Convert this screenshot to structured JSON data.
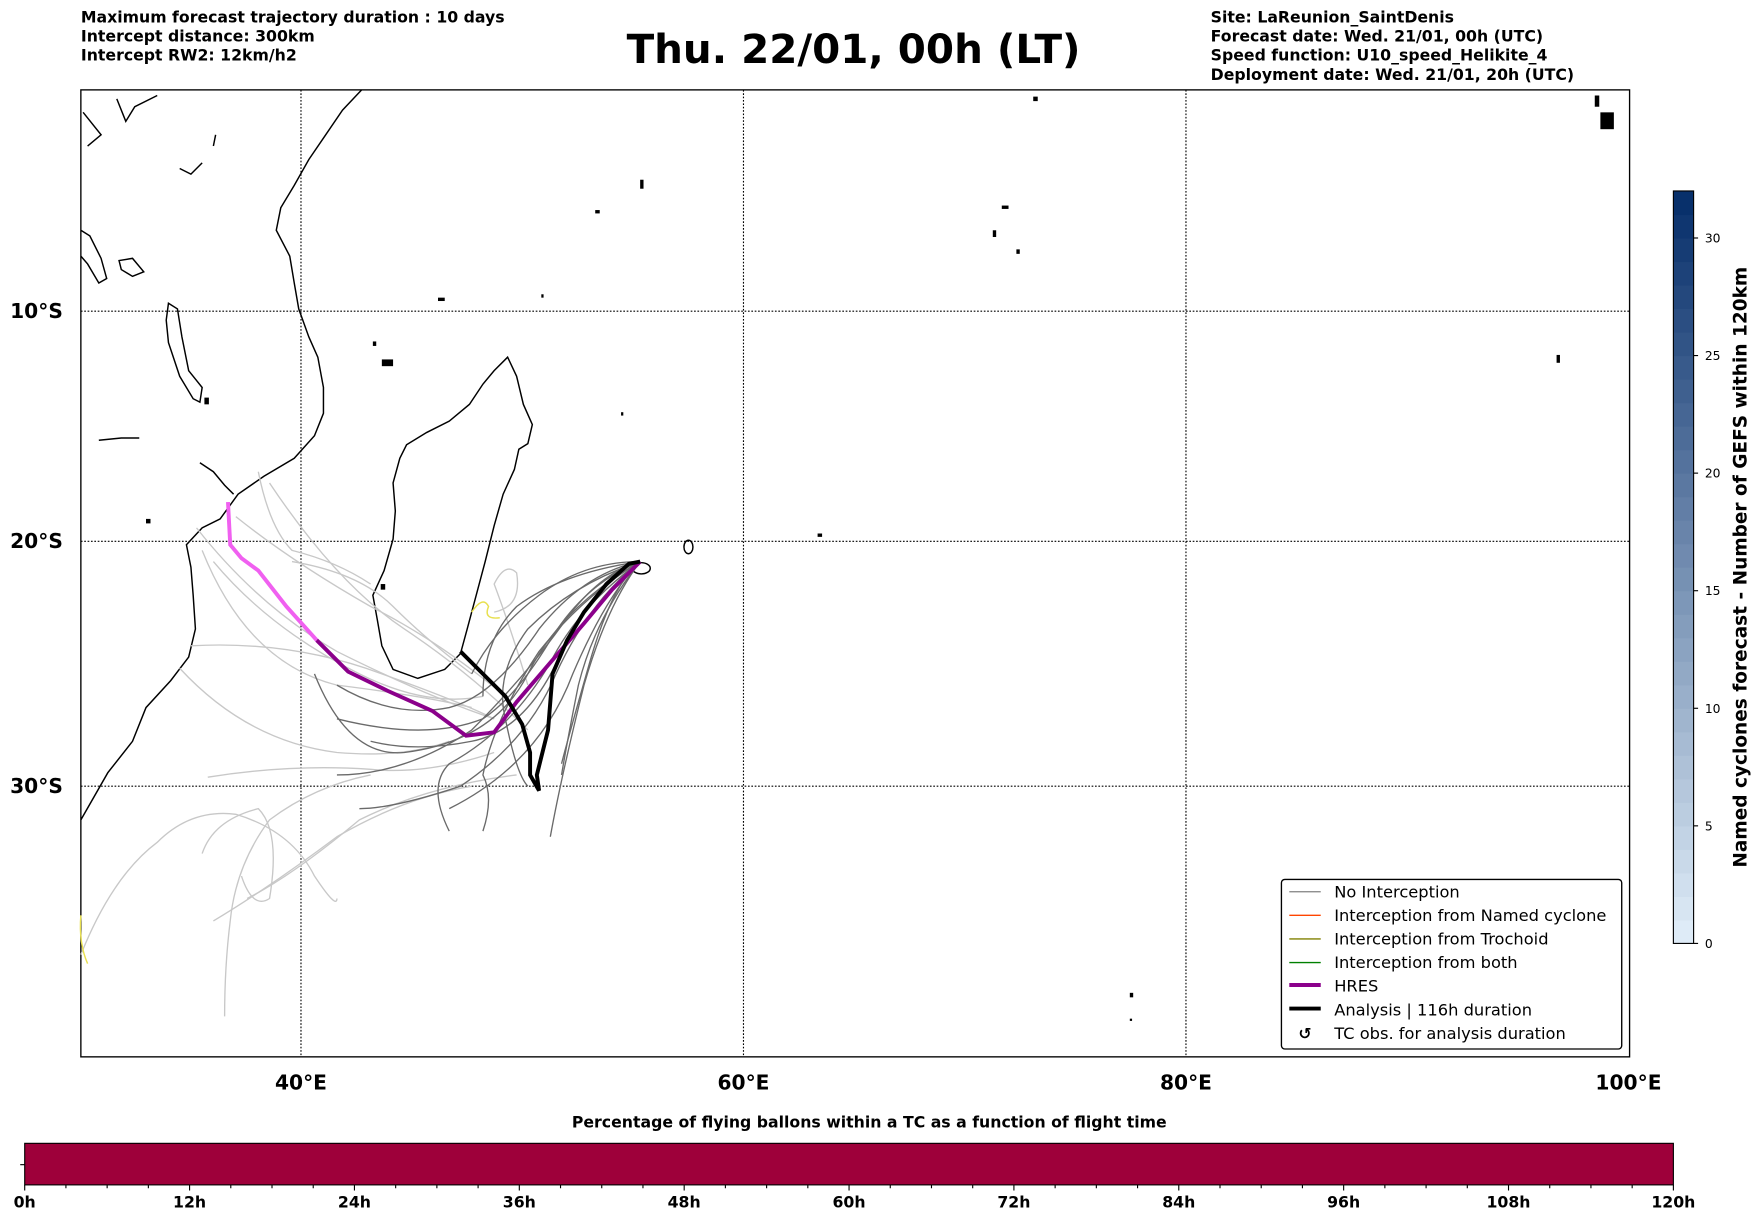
{
  "header": {
    "left_lines": [
      "Maximum forecast trajectory duration : 10 days",
      "Intercept distance: 300km",
      "Intercept RW2: 12km/h2"
    ],
    "title": "Thu. 22/01, 00h (LT)",
    "right_lines": [
      "Site: LaReunion_SaintDenis",
      "Forecast date: Wed. 21/01, 00h (UTC)",
      "Speed function: U10_speed_Helikite_4",
      "Deployment date: Wed. 21/01, 20h (UTC)"
    ]
  },
  "map": {
    "lon_labels": [
      "40°E",
      "60°E",
      "80°E",
      "100°E"
    ],
    "lat_labels": [
      "10°S",
      "20°S",
      "30°S"
    ]
  },
  "legend": {
    "items": [
      {
        "label": "No Interception",
        "color": "#808080"
      },
      {
        "label": "Interception from Named cyclone",
        "color": "#ff4500"
      },
      {
        "label": "Interception from Trochoid",
        "color": "#808000"
      },
      {
        "label": "Interception from both",
        "color": "#008000"
      },
      {
        "label": "HRES",
        "color": "#8b008b"
      },
      {
        "label": "Analysis | 116h duration",
        "color": "#000000"
      },
      {
        "label": "TC obs. for analysis duration",
        "icon": "cyclone-symbol-icon"
      }
    ]
  },
  "right_colorbar": {
    "label": "Named cyclones forecast - Number of GEFS within 120km",
    "ticks": [
      "0",
      "5",
      "10",
      "15",
      "20",
      "25",
      "30"
    ],
    "range": [
      0,
      32
    ]
  },
  "bottom_colorbar": {
    "title": "Percentage of flying ballons within a TC as a function of flight time",
    "ticks": [
      "0h",
      "12h",
      "24h",
      "36h",
      "48h",
      "60h",
      "72h",
      "84h",
      "96h",
      "108h",
      "120h"
    ],
    "color": "#9e003a"
  }
}
